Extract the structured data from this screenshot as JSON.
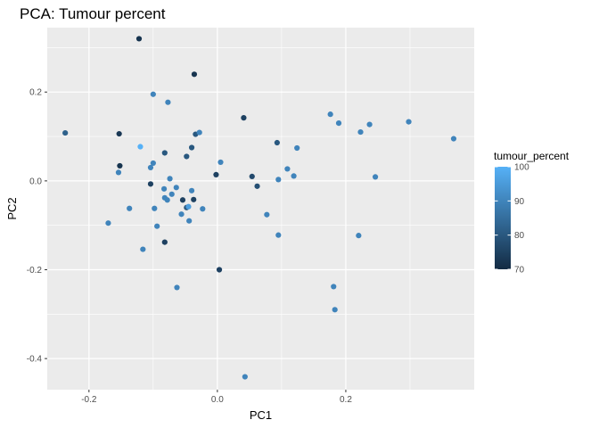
{
  "chart_data": {
    "type": "scatter",
    "title": "PCA: Tumour percent",
    "xlabel": "PC1",
    "ylabel": "PC2",
    "xlim": [
      -0.265,
      0.4
    ],
    "ylim": [
      -0.47,
      0.345
    ],
    "x_ticks": [
      -0.2,
      0.0,
      0.2
    ],
    "x_tick_labels": [
      "-0.2",
      "0.0",
      "0.2"
    ],
    "y_ticks": [
      -0.4,
      -0.2,
      0.0,
      0.2
    ],
    "y_tick_labels": [
      "-0.4",
      "-0.2",
      "0.0",
      "0.2"
    ],
    "grid": true,
    "legend": {
      "title": "tumour_percent",
      "placement": "right",
      "min": 70,
      "max": 100,
      "breaks": [
        70,
        80,
        90,
        100
      ],
      "break_labels": [
        "70",
        "80",
        "90",
        "100"
      ],
      "low_color": "#132b43",
      "high_color": "#56b1f7"
    },
    "points": [
      {
        "x": -0.122,
        "y": 0.32,
        "v": 72
      },
      {
        "x": -0.036,
        "y": 0.24,
        "v": 72
      },
      {
        "x": -0.1,
        "y": 0.195,
        "v": 90
      },
      {
        "x": -0.077,
        "y": 0.177,
        "v": 90
      },
      {
        "x": 0.041,
        "y": 0.142,
        "v": 75
      },
      {
        "x": 0.176,
        "y": 0.15,
        "v": 90
      },
      {
        "x": 0.189,
        "y": 0.13,
        "v": 90
      },
      {
        "x": 0.298,
        "y": 0.133,
        "v": 90
      },
      {
        "x": 0.237,
        "y": 0.127,
        "v": 90
      },
      {
        "x": 0.223,
        "y": 0.11,
        "v": 90
      },
      {
        "x": 0.368,
        "y": 0.095,
        "v": 90
      },
      {
        "x": -0.237,
        "y": 0.108,
        "v": 82
      },
      {
        "x": -0.153,
        "y": 0.106,
        "v": 73
      },
      {
        "x": -0.12,
        "y": 0.077,
        "v": 100
      },
      {
        "x": -0.034,
        "y": 0.105,
        "v": 80
      },
      {
        "x": -0.028,
        "y": 0.109,
        "v": 90
      },
      {
        "x": 0.093,
        "y": 0.086,
        "v": 80
      },
      {
        "x": 0.124,
        "y": 0.074,
        "v": 90
      },
      {
        "x": -0.04,
        "y": 0.075,
        "v": 80
      },
      {
        "x": -0.082,
        "y": 0.063,
        "v": 80
      },
      {
        "x": -0.048,
        "y": 0.055,
        "v": 80
      },
      {
        "x": -0.152,
        "y": 0.034,
        "v": 72
      },
      {
        "x": -0.1,
        "y": 0.04,
        "v": 90
      },
      {
        "x": -0.104,
        "y": 0.03,
        "v": 90
      },
      {
        "x": 0.005,
        "y": 0.042,
        "v": 90
      },
      {
        "x": 0.109,
        "y": 0.027,
        "v": 90
      },
      {
        "x": -0.154,
        "y": 0.019,
        "v": 90
      },
      {
        "x": -0.002,
        "y": 0.014,
        "v": 75
      },
      {
        "x": 0.054,
        "y": 0.01,
        "v": 77
      },
      {
        "x": 0.119,
        "y": 0.011,
        "v": 90
      },
      {
        "x": 0.246,
        "y": 0.009,
        "v": 90
      },
      {
        "x": 0.095,
        "y": 0.003,
        "v": 90
      },
      {
        "x": -0.104,
        "y": -0.007,
        "v": 75
      },
      {
        "x": -0.074,
        "y": 0.005,
        "v": 90
      },
      {
        "x": 0.062,
        "y": -0.012,
        "v": 78
      },
      {
        "x": -0.064,
        "y": -0.015,
        "v": 90
      },
      {
        "x": -0.083,
        "y": -0.018,
        "v": 90
      },
      {
        "x": -0.071,
        "y": -0.03,
        "v": 90
      },
      {
        "x": -0.04,
        "y": -0.022,
        "v": 90
      },
      {
        "x": -0.082,
        "y": -0.038,
        "v": 90
      },
      {
        "x": -0.078,
        "y": -0.043,
        "v": 90
      },
      {
        "x": -0.054,
        "y": -0.043,
        "v": 75
      },
      {
        "x": -0.037,
        "y": -0.042,
        "v": 75
      },
      {
        "x": -0.137,
        "y": -0.062,
        "v": 90
      },
      {
        "x": -0.098,
        "y": -0.062,
        "v": 90
      },
      {
        "x": -0.048,
        "y": -0.06,
        "v": 80
      },
      {
        "x": -0.045,
        "y": -0.058,
        "v": 96
      },
      {
        "x": -0.023,
        "y": -0.063,
        "v": 90
      },
      {
        "x": -0.056,
        "y": -0.075,
        "v": 90
      },
      {
        "x": 0.077,
        "y": -0.076,
        "v": 90
      },
      {
        "x": -0.044,
        "y": -0.09,
        "v": 90
      },
      {
        "x": -0.17,
        "y": -0.095,
        "v": 90
      },
      {
        "x": -0.094,
        "y": -0.102,
        "v": 90
      },
      {
        "x": 0.095,
        "y": -0.122,
        "v": 90
      },
      {
        "x": 0.22,
        "y": -0.123,
        "v": 90
      },
      {
        "x": -0.082,
        "y": -0.138,
        "v": 75
      },
      {
        "x": -0.116,
        "y": -0.154,
        "v": 90
      },
      {
        "x": 0.003,
        "y": -0.2,
        "v": 75
      },
      {
        "x": -0.063,
        "y": -0.24,
        "v": 90
      },
      {
        "x": 0.181,
        "y": -0.238,
        "v": 90
      },
      {
        "x": 0.183,
        "y": -0.29,
        "v": 90
      },
      {
        "x": 0.043,
        "y": -0.441,
        "v": 90
      }
    ]
  }
}
